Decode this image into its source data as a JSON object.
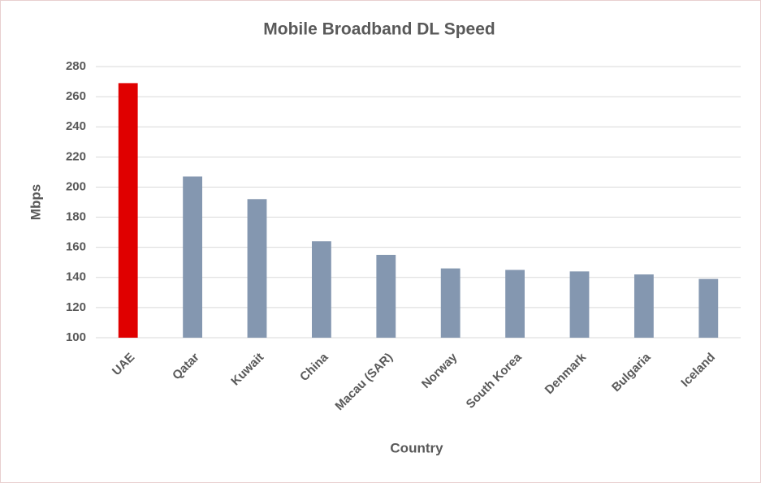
{
  "chart_data": {
    "type": "bar",
    "title": "Mobile Broadband DL Speed",
    "x_label": "Country",
    "y_label": "Mbps",
    "categories": [
      "UAE",
      "Qatar",
      "Kuwait",
      "China",
      "Macau (SAR)",
      "Norway",
      "South Korea",
      "Denmark",
      "Bulgaria",
      "Iceland"
    ],
    "values": [
      269,
      207,
      192,
      164,
      155,
      146,
      145,
      144,
      142,
      139
    ],
    "colors": [
      "#e00000",
      "#8497b0",
      "#8497b0",
      "#8497b0",
      "#8497b0",
      "#8497b0",
      "#8497b0",
      "#8497b0",
      "#8497b0",
      "#8497b0"
    ],
    "ylim": [
      100,
      280
    ],
    "yticks": [
      100,
      120,
      140,
      160,
      180,
      200,
      220,
      240,
      260,
      280
    ],
    "grid": true
  }
}
